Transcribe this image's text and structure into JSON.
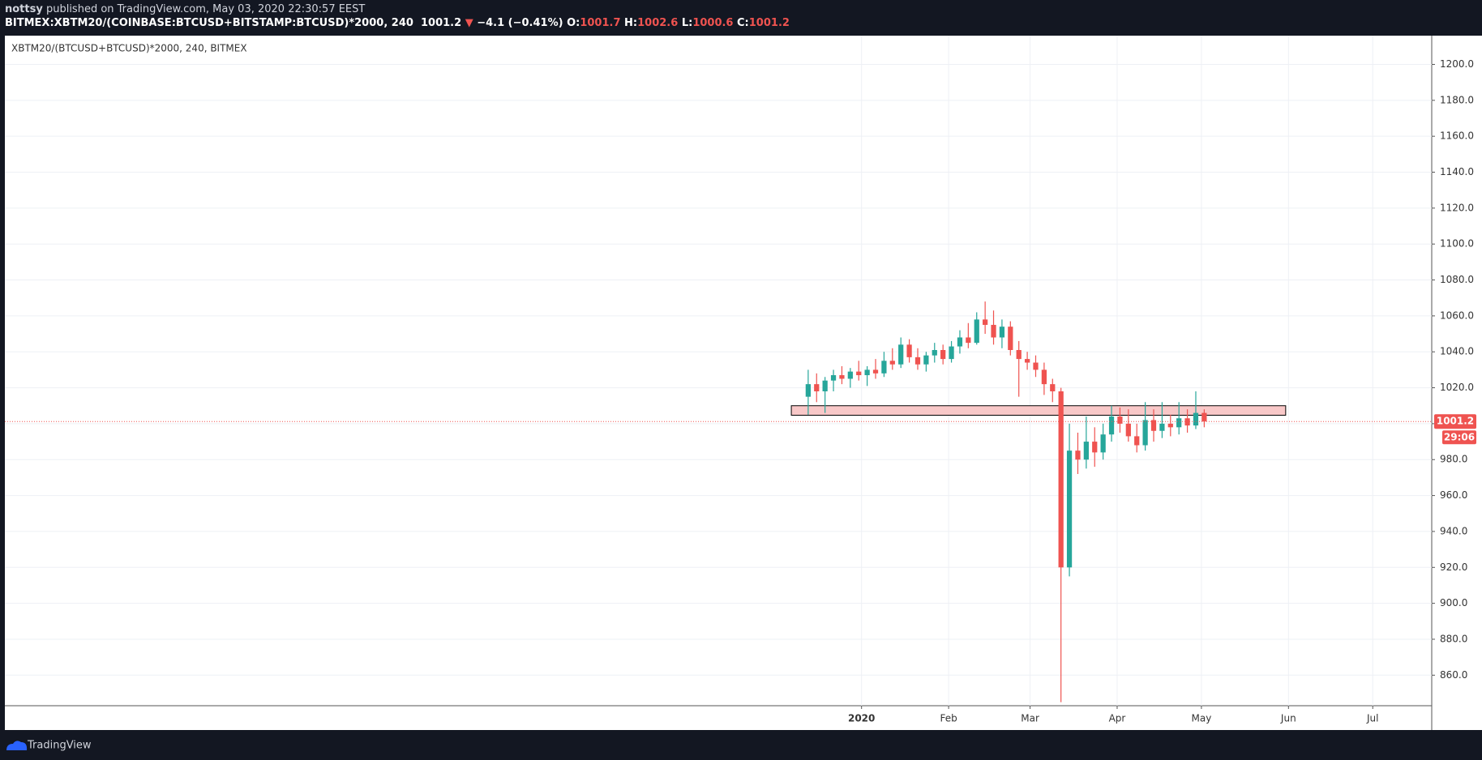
{
  "header": {
    "author": "nottsy",
    "published": "published on TradingView.com, May 03, 2020 22:30:57 EEST",
    "symbol": "BITMEX:XBTM20/(COINBASE:BTCUSD+BITSTAMP:BTCUSD)*2000, 240",
    "last": "1001.2",
    "arrow": "▼",
    "change": "−4.1 (−0.41%)",
    "o_label": "O:",
    "o": "1001.7",
    "h_label": "H:",
    "h": "1002.6",
    "l_label": "L:",
    "l": "1000.6",
    "c_label": "C:",
    "c": "1001.2"
  },
  "chart_data": {
    "type": "candlestick",
    "legend": "XBTM20/(BTCUSD+BTCUSD)*2000, 240, BITMEX",
    "up_color": "#26a69a",
    "down_color": "#ef5350",
    "grid": true,
    "xlim": [
      -305,
      203
    ],
    "ylim": [
      843,
      1216
    ],
    "xticks": [
      {
        "value": 0,
        "label": "2020"
      },
      {
        "value": 31,
        "label": "Feb"
      },
      {
        "value": 60,
        "label": "Mar"
      },
      {
        "value": 91,
        "label": "Apr"
      },
      {
        "value": 121,
        "label": "May"
      },
      {
        "value": 152,
        "label": "Jun"
      },
      {
        "value": 182,
        "label": "Jul"
      }
    ],
    "yticks": [
      {
        "value": 860,
        "label": "860.0"
      },
      {
        "value": 880,
        "label": "880.0"
      },
      {
        "value": 900,
        "label": "900.0"
      },
      {
        "value": 920,
        "label": "920.0"
      },
      {
        "value": 940,
        "label": "940.0"
      },
      {
        "value": 960,
        "label": "960.0"
      },
      {
        "value": 980,
        "label": "980.0"
      },
      {
        "value": 1000,
        "label": "1000.0"
      },
      {
        "value": 1020,
        "label": "1020.0"
      },
      {
        "value": 1040,
        "label": "1040.0"
      },
      {
        "value": 1060,
        "label": "1060.0"
      },
      {
        "value": 1080,
        "label": "1080.0"
      },
      {
        "value": 1100,
        "label": "1100.0"
      },
      {
        "value": 1120,
        "label": "1120.0"
      },
      {
        "value": 1140,
        "label": "1140.0"
      },
      {
        "value": 1160,
        "label": "1160.0"
      },
      {
        "value": 1180,
        "label": "1180.0"
      },
      {
        "value": 1200,
        "label": "1200.0"
      }
    ],
    "x": [
      -19,
      -16,
      -13,
      -10,
      -7,
      -4,
      -1,
      2,
      5,
      8,
      11,
      14,
      17,
      20,
      23,
      26,
      29,
      32,
      35,
      38,
      41,
      44,
      47,
      50,
      53,
      56,
      59,
      62,
      65,
      68,
      71,
      74,
      77,
      80,
      83,
      86,
      89,
      92,
      95,
      98,
      101,
      104,
      107,
      110,
      113,
      116,
      119,
      122
    ],
    "open": [
      1015,
      1022,
      1018,
      1024,
      1027,
      1025,
      1029,
      1027,
      1030,
      1028,
      1035,
      1033,
      1044,
      1037,
      1033,
      1038,
      1041,
      1036,
      1043,
      1048,
      1045,
      1058,
      1055,
      1048,
      1054,
      1041,
      1036,
      1034,
      1030,
      1022,
      1018,
      920,
      985,
      980,
      990,
      984,
      994,
      1004,
      1000,
      993,
      988,
      1002,
      996,
      1000,
      998,
      1003,
      999,
      1006
    ],
    "high": [
      1030,
      1028,
      1026,
      1030,
      1032,
      1031,
      1035,
      1032,
      1036,
      1040,
      1042,
      1048,
      1047,
      1042,
      1040,
      1045,
      1044,
      1046,
      1052,
      1056,
      1062,
      1068,
      1063,
      1058,
      1057,
      1046,
      1040,
      1038,
      1034,
      1025,
      1020,
      1000,
      995,
      1004,
      998,
      1000,
      1010,
      1009,
      1008,
      1000,
      1012,
      1008,
      1012,
      1005,
      1012,
      1008,
      1018,
      1008
    ],
    "low": [
      1005,
      1012,
      1006,
      1018,
      1022,
      1020,
      1024,
      1021,
      1025,
      1026,
      1030,
      1031,
      1034,
      1030,
      1029,
      1034,
      1033,
      1034,
      1039,
      1042,
      1044,
      1050,
      1044,
      1042,
      1038,
      1015,
      1030,
      1026,
      1016,
      1012,
      845,
      915,
      972,
      975,
      976,
      980,
      990,
      995,
      990,
      984,
      985,
      990,
      992,
      993,
      994,
      995,
      997,
      998
    ],
    "close": [
      1022,
      1018,
      1024,
      1027,
      1025,
      1029,
      1027,
      1030,
      1028,
      1035,
      1033,
      1044,
      1037,
      1033,
      1038,
      1041,
      1036,
      1043,
      1048,
      1045,
      1058,
      1055,
      1048,
      1054,
      1041,
      1036,
      1034,
      1030,
      1022,
      1018,
      920,
      985,
      980,
      990,
      984,
      994,
      1004,
      1000,
      993,
      988,
      1002,
      996,
      1000,
      998,
      1003,
      999,
      1006,
      1001.2
    ],
    "zone": {
      "start": -25,
      "end": 151,
      "top": 1010,
      "bottom": 1004.7,
      "color": "#f8c8c8"
    },
    "last_price": 1001.2,
    "countdown": "29:06"
  },
  "footer": {
    "brand": "TradingView"
  }
}
